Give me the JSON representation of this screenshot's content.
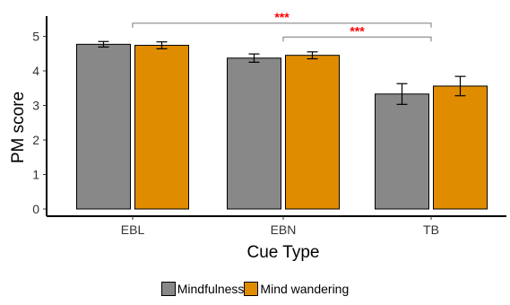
{
  "chart_data": {
    "type": "bar",
    "title": "",
    "xlabel": "Cue Type",
    "ylabel": "PM score",
    "categories": [
      "EBL",
      "EBN",
      "TB"
    ],
    "series": [
      {
        "name": "Mindfulness",
        "color": "#888888",
        "values": [
          4.77,
          4.37,
          3.33
        ],
        "error": [
          0.08,
          0.12,
          0.3
        ]
      },
      {
        "name": "Mind wandering",
        "color": "#e08c00",
        "values": [
          4.74,
          4.45,
          3.56
        ],
        "error": [
          0.1,
          0.1,
          0.28
        ]
      }
    ],
    "ylim": [
      0,
      5
    ],
    "yticks": [
      "0",
      "1",
      "2",
      "3",
      "4",
      "5"
    ],
    "grid": false,
    "legend_position": "bottom",
    "significance": [
      {
        "from": "EBL",
        "to": "TB",
        "label": "***",
        "y": 5.38
      },
      {
        "from": "EBN",
        "to": "TB",
        "label": "***",
        "y": 4.98
      }
    ]
  }
}
